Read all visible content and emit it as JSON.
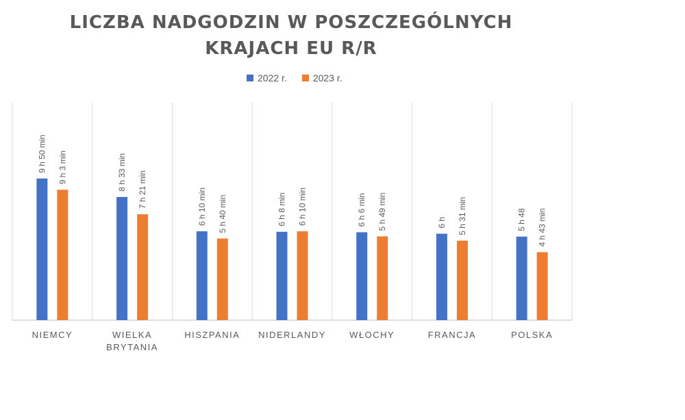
{
  "chart_data": {
    "type": "bar",
    "title": "LICZBA NADGODZIN W POSZCZEGÓLNYCH KRAJACH EU R/R",
    "categories": [
      "NIEMCY",
      "WIELKA BRYTANIA",
      "HISZPANIA",
      "NIDERLANDY",
      "WŁOCHY",
      "FRANCJA",
      "POLSKA"
    ],
    "series": [
      {
        "name": "2022 r.",
        "color": "#4472C4",
        "values_hours": [
          9.833,
          8.55,
          6.167,
          6.133,
          6.1,
          6.0,
          5.8
        ],
        "labels": [
          "9 h 50 min",
          "8 h 33 min",
          "6 h 10 min",
          "6 h 8 min",
          "6 h 6 min",
          "6 h",
          "5 h 48"
        ]
      },
      {
        "name": "2023 r.",
        "color": "#ED7D31",
        "values_hours": [
          9.05,
          7.35,
          5.667,
          6.167,
          5.817,
          5.517,
          4.717
        ],
        "labels": [
          "9 h 3 min",
          "7 h 21 min",
          "5 h 40 min",
          "6 h 10 min",
          "5 h 49 min",
          "5 h 31 min",
          "4 h 43 min"
        ]
      }
    ],
    "ylim": [
      0,
      15.1
    ],
    "legend_position": "top",
    "grid": "vertical category separators"
  }
}
